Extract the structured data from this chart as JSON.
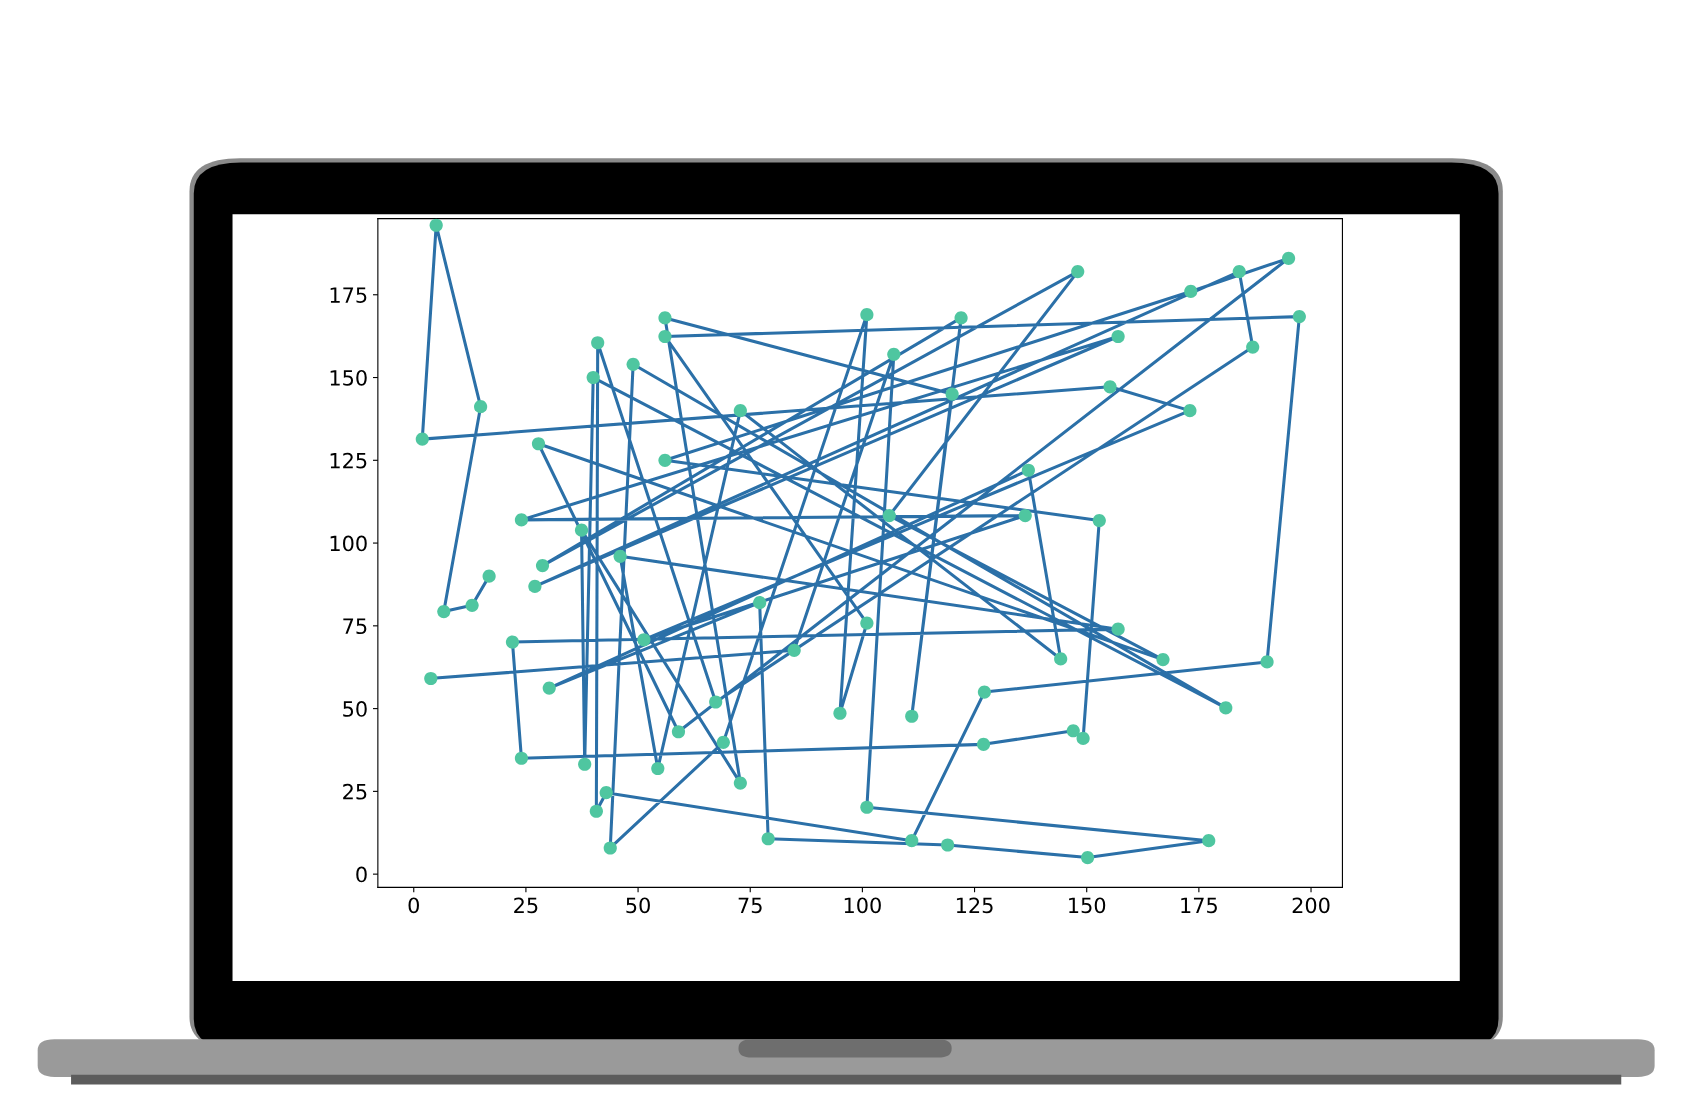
{
  "chart_data": {
    "type": "line",
    "xlim": [
      -8,
      207
    ],
    "ylim": [
      -4,
      198
    ],
    "xticks": [
      0,
      25,
      50,
      75,
      100,
      125,
      150,
      175,
      200
    ],
    "yticks": [
      0,
      25,
      50,
      75,
      100,
      125,
      150,
      175
    ],
    "grid": false,
    "legend": false,
    "x": [
      16.8,
      13,
      6.7,
      14.9,
      5,
      1.9,
      155.2,
      173,
      51.3,
      136.3,
      24,
      157,
      27,
      184,
      187,
      67.3,
      41,
      40.7,
      42.9,
      111,
      127.2,
      190.2,
      197.4,
      56,
      101,
      95,
      101,
      69,
      43.8,
      48.9,
      181,
      40,
      38.1,
      37.4,
      72.8,
      56,
      120,
      111,
      122,
      28.7,
      148,
      106,
      167,
      27.8,
      59,
      195,
      173.2,
      56,
      152.8,
      149.2,
      147,
      127,
      24,
      22,
      157,
      46,
      54.4,
      72.8,
      144.2,
      137,
      30.2,
      77.1,
      79,
      119,
      150.2,
      177.2,
      101,
      107,
      84.8,
      3.8
    ],
    "series": [
      {
        "color": "#2b70a8",
        "line_style": "solid",
        "values": [
          90,
          81.2,
          79.3,
          141.2,
          196,
          131.4,
          147.2,
          140,
          70.8,
          108.3,
          107,
          162.4,
          86.9,
          182,
          159.2,
          52,
          160.5,
          19,
          24.6,
          10.1,
          55,
          64.1,
          168.4,
          162.4,
          75.8,
          48.6,
          169,
          39.8,
          7.9,
          154,
          50.2,
          150,
          33.2,
          103.9,
          27.5,
          168,
          145,
          47.7,
          168,
          93.2,
          182,
          108.3,
          64.8,
          130,
          43,
          186,
          176,
          125,
          106.8,
          41,
          43.3,
          39.2,
          35,
          70.1,
          74,
          96,
          31.9,
          140,
          65,
          122,
          56.2,
          82,
          10.7,
          8.8,
          5,
          10.1,
          20.2,
          157,
          67.6,
          59.1
        ]
      },
      {
        "type": "scatter",
        "color": "#4fc6a0",
        "marker": "circle",
        "values": [
          90,
          81.2,
          79.3,
          141.2,
          196,
          131.4,
          147.2,
          140,
          70.8,
          108.3,
          107,
          162.4,
          86.9,
          182,
          159.2,
          52,
          160.5,
          19,
          24.6,
          10.1,
          55,
          64.1,
          168.4,
          162.4,
          75.8,
          48.6,
          169,
          39.8,
          7.9,
          154,
          50.2,
          150,
          33.2,
          103.9,
          27.5,
          168,
          145,
          47.7,
          168,
          93.2,
          182,
          108.3,
          64.8,
          130,
          43,
          186,
          176,
          125,
          106.8,
          41,
          43.3,
          39.2,
          35,
          70.1,
          74,
          96,
          31.9,
          140,
          65,
          122,
          56.2,
          82,
          10.7,
          8.8,
          5,
          10.1,
          20.2,
          157,
          67.6,
          59.1
        ]
      }
    ]
  }
}
